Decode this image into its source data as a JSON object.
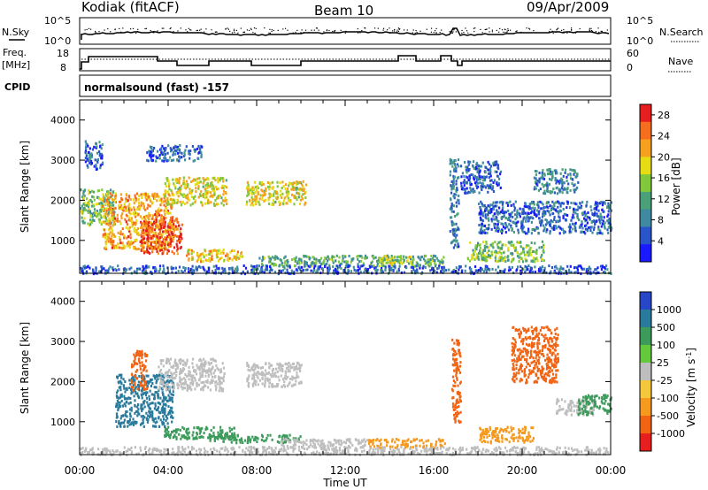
{
  "header": {
    "station": "Kodiak (fitACF)",
    "beam": "Beam 10",
    "date": "09/Apr/2009"
  },
  "noise_panel": {
    "left_label": "N.Sky",
    "right_label": "N.Search",
    "left_ticks": [
      "10^5",
      "10^0"
    ],
    "right_ticks": [
      "10^5",
      "10^0"
    ]
  },
  "freq_panel": {
    "left_label_1": "Freq.",
    "left_label_2": "[MHz]",
    "left_ticks": [
      "18",
      "8"
    ],
    "right_label": "Nave",
    "right_ticks": [
      "60",
      "0"
    ]
  },
  "cpid": {
    "label": "CPID",
    "value": "normalsound (fast) -157"
  },
  "chart_data": [
    {
      "type": "heatmap",
      "name": "power",
      "ylabel": "Slant Range [km]",
      "xlabel": "Time UT",
      "ylim": [
        180,
        4500
      ],
      "xlim": [
        "00:00",
        "24:00"
      ],
      "y_ticks": [
        1000,
        2000,
        3000,
        4000
      ],
      "x_ticks": [
        "00:00",
        "04:00",
        "08:00",
        "12:00",
        "16:00",
        "20:00",
        "00:00"
      ],
      "colorbar": {
        "label": "Power [dB]",
        "ticks": [
          4,
          8,
          12,
          16,
          20,
          24,
          28
        ],
        "range": [
          0,
          30
        ],
        "colors": [
          "#1a1aff",
          "#2a55c8",
          "#3f8aa0",
          "#4aa078",
          "#82c83c",
          "#e6dc14",
          "#f5a01e",
          "#f56e1e",
          "#e61e1e"
        ]
      },
      "echo_regions": [
        {
          "t0": 0.0,
          "t1": 1.6,
          "r0": 1400,
          "r1": 2300,
          "level": 14
        },
        {
          "t0": 1.0,
          "t1": 4.2,
          "r0": 800,
          "r1": 2200,
          "level": 22
        },
        {
          "t0": 2.7,
          "t1": 4.6,
          "r0": 700,
          "r1": 1600,
          "level": 26
        },
        {
          "t0": 3.8,
          "t1": 6.6,
          "r0": 1900,
          "r1": 2600,
          "level": 18
        },
        {
          "t0": 4.8,
          "t1": 7.4,
          "r0": 500,
          "r1": 800,
          "level": 20
        },
        {
          "t0": 7.5,
          "t1": 10.2,
          "r0": 1900,
          "r1": 2500,
          "level": 18
        },
        {
          "t0": 0.2,
          "t1": 1.0,
          "r0": 2800,
          "r1": 3500,
          "level": 6
        },
        {
          "t0": 3.0,
          "t1": 5.5,
          "r0": 3000,
          "r1": 3400,
          "level": 6
        },
        {
          "t0": 8.0,
          "t1": 16.5,
          "r0": 380,
          "r1": 650,
          "level": 12
        },
        {
          "t0": 13.5,
          "t1": 15.0,
          "r0": 450,
          "r1": 650,
          "level": 16
        },
        {
          "t0": 16.7,
          "t1": 17.1,
          "r0": 800,
          "r1": 3100,
          "level": 8
        },
        {
          "t0": 17.5,
          "t1": 21.0,
          "r0": 500,
          "r1": 1000,
          "level": 14
        },
        {
          "t0": 18.0,
          "t1": 24.0,
          "r0": 1200,
          "r1": 2000,
          "level": 6
        },
        {
          "t0": 17.2,
          "t1": 19.0,
          "r0": 2200,
          "r1": 3000,
          "level": 6
        },
        {
          "t0": 20.5,
          "t1": 22.5,
          "r0": 2200,
          "r1": 2800,
          "level": 8
        },
        {
          "t0": 0.0,
          "t1": 24.0,
          "r0": 200,
          "r1": 400,
          "level": 6
        }
      ]
    },
    {
      "type": "heatmap",
      "name": "velocity",
      "ylabel": "Slant Range [km]",
      "xlabel": "Time UT",
      "ylim": [
        180,
        4500
      ],
      "xlim": [
        "00:00",
        "24:00"
      ],
      "y_ticks": [
        1000,
        2000,
        3000,
        4000
      ],
      "x_ticks": [
        "00:00",
        "04:00",
        "08:00",
        "12:00",
        "16:00",
        "20:00",
        "00:00"
      ],
      "colorbar": {
        "label": "Velocity [m s^-1]",
        "ticks": [
          "1000",
          "500",
          "100",
          "25",
          "-25",
          "-100",
          "-500",
          "-1000"
        ],
        "colors": [
          "#2846c8",
          "#2a7a9c",
          "#3c9a5a",
          "#64c83c",
          "#bebebe",
          "#f5c83c",
          "#f59a1e",
          "#f06414",
          "#e61e1e"
        ]
      },
      "echo_regions": [
        {
          "t0": 1.6,
          "t1": 4.2,
          "r0": 900,
          "r1": 2200,
          "vel": 500
        },
        {
          "t0": 2.3,
          "t1": 3.0,
          "r0": 1800,
          "r1": 2800,
          "vel": -500
        },
        {
          "t0": 3.8,
          "t1": 7.0,
          "r0": 600,
          "r1": 900,
          "vel": 100
        },
        {
          "t0": 5.8,
          "t1": 10.0,
          "r0": 500,
          "r1": 700,
          "vel": 100
        },
        {
          "t0": 3.5,
          "t1": 6.5,
          "r0": 1800,
          "r1": 2600,
          "vel": 0
        },
        {
          "t0": 7.5,
          "t1": 10.0,
          "r0": 1900,
          "r1": 2500,
          "vel": 0
        },
        {
          "t0": 9.0,
          "t1": 13.0,
          "r0": 380,
          "r1": 600,
          "vel": 0
        },
        {
          "t0": 13.0,
          "t1": 16.5,
          "r0": 380,
          "r1": 600,
          "vel": -100
        },
        {
          "t0": 16.8,
          "t1": 17.2,
          "r0": 1000,
          "r1": 3100,
          "vel": -500
        },
        {
          "t0": 18.0,
          "t1": 20.5,
          "r0": 500,
          "r1": 900,
          "vel": -100
        },
        {
          "t0": 19.5,
          "t1": 21.6,
          "r0": 2000,
          "r1": 3400,
          "vel": -500
        },
        {
          "t0": 21.5,
          "t1": 23.2,
          "r0": 1200,
          "r1": 1600,
          "vel": 0
        },
        {
          "t0": 22.5,
          "t1": 24.0,
          "r0": 1200,
          "r1": 1700,
          "vel": 100
        },
        {
          "t0": 0.0,
          "t1": 24.0,
          "r0": 200,
          "r1": 400,
          "vel": 0
        }
      ]
    }
  ]
}
